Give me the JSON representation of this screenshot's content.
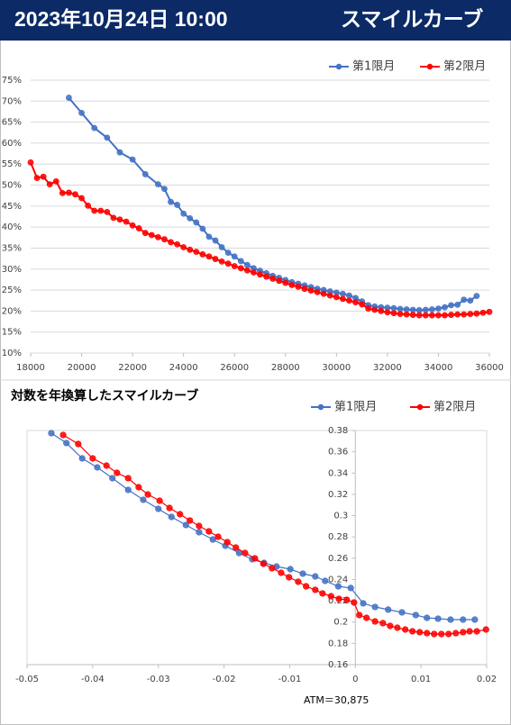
{
  "header": {
    "date": "2023年10月24日 10:00",
    "title": "スマイルカーブ"
  },
  "chart_data": [
    {
      "type": "line",
      "legend": "top-right",
      "grid": true,
      "xlim": [
        18000,
        36000
      ],
      "xticks": [
        18000,
        20000,
        22000,
        24000,
        26000,
        28000,
        30000,
        32000,
        34000,
        36000
      ],
      "ylim": [
        10,
        75
      ],
      "yticks": [
        {
          "value": 10,
          "label": "10%"
        },
        {
          "value": 15,
          "label": "15%"
        },
        {
          "value": 20,
          "label": "20%"
        },
        {
          "value": 25,
          "label": "25%"
        },
        {
          "value": 30,
          "label": "30%"
        },
        {
          "value": 35,
          "label": "35%"
        },
        {
          "value": 40,
          "label": "40%"
        },
        {
          "value": 45,
          "label": "45%"
        },
        {
          "value": 50,
          "label": "50%"
        },
        {
          "value": 55,
          "label": "55%"
        },
        {
          "value": 60,
          "label": "60%"
        },
        {
          "value": 65,
          "label": "65%"
        },
        {
          "value": 70,
          "label": "70%"
        },
        {
          "value": 75,
          "label": "75%"
        }
      ],
      "series": [
        {
          "name": "第1限月",
          "color": "#4472c4",
          "x": [
            19500,
            20000,
            20500,
            21000,
            21500,
            22000,
            22500,
            23000,
            23250,
            23500,
            23750,
            24000,
            24250,
            24500,
            24750,
            25000,
            25250,
            25500,
            25750,
            26000,
            26250,
            26500,
            26750,
            27000,
            27250,
            27500,
            27750,
            28000,
            28250,
            28500,
            28750,
            29000,
            29250,
            29500,
            29750,
            30000,
            30250,
            30500,
            30750,
            31000,
            31250,
            31500,
            31750,
            32000,
            32250,
            32500,
            32750,
            33000,
            33250,
            33500,
            33750,
            34000,
            34250,
            34500,
            34750,
            35000,
            35250,
            35500
          ],
          "values": [
            70.8,
            67.2,
            63.6,
            61.3,
            57.8,
            56.1,
            52.6,
            50.2,
            49.1,
            46.0,
            45.3,
            43.2,
            42.1,
            41.1,
            39.6,
            37.7,
            36.8,
            35.2,
            33.9,
            33.0,
            31.9,
            31.0,
            30.2,
            29.6,
            29.0,
            28.4,
            27.9,
            27.4,
            26.9,
            26.5,
            26.1,
            25.7,
            25.3,
            25.0,
            24.7,
            24.4,
            24.1,
            23.7,
            23.1,
            22.3,
            21.4,
            21.1,
            20.9,
            20.8,
            20.7,
            20.5,
            20.4,
            20.3,
            20.2,
            20.3,
            20.4,
            20.6,
            20.9,
            21.4,
            21.5,
            22.7,
            22.5,
            23.6
          ]
        },
        {
          "name": "第2限月",
          "color": "#ff0000",
          "x": [
            18000,
            18250,
            18500,
            18750,
            19000,
            19250,
            19500,
            19750,
            20000,
            20250,
            20500,
            20750,
            21000,
            21250,
            21500,
            21750,
            22000,
            22250,
            22500,
            22750,
            23000,
            23250,
            23500,
            23750,
            24000,
            24250,
            24500,
            24750,
            25000,
            25250,
            25500,
            25750,
            26000,
            26250,
            26500,
            26750,
            27000,
            27250,
            27500,
            27750,
            28000,
            28250,
            28500,
            28750,
            29000,
            29250,
            29500,
            29750,
            30000,
            30250,
            30500,
            30750,
            31000,
            31250,
            31500,
            31750,
            32000,
            32250,
            32500,
            32750,
            33000,
            33250,
            33500,
            33750,
            34000,
            34250,
            34500,
            34750,
            35000,
            35250,
            35500,
            35750,
            36000
          ],
          "values": [
            55.4,
            51.7,
            52.0,
            50.2,
            50.9,
            48.1,
            48.2,
            47.8,
            46.9,
            45.1,
            43.9,
            43.9,
            43.6,
            42.2,
            41.8,
            41.3,
            40.4,
            39.7,
            38.6,
            38.1,
            37.6,
            37.1,
            36.4,
            35.9,
            35.2,
            34.6,
            34.1,
            33.5,
            33.0,
            32.4,
            31.8,
            31.3,
            30.7,
            30.2,
            29.7,
            29.2,
            28.7,
            28.2,
            27.7,
            27.2,
            26.7,
            26.2,
            25.8,
            25.3,
            24.9,
            24.5,
            24.1,
            23.7,
            23.3,
            22.9,
            22.5,
            22.1,
            21.6,
            20.6,
            20.3,
            20.0,
            19.7,
            19.5,
            19.3,
            19.2,
            19.1,
            19.0,
            19.0,
            19.0,
            19.0,
            19.0,
            19.1,
            19.2,
            19.2,
            19.3,
            19.4,
            19.6,
            19.8
          ]
        }
      ]
    },
    {
      "type": "line",
      "title": "対数を年換算したスマイルカーブ",
      "legend": "top-right",
      "grid": false,
      "yaxis_cross_x": 0,
      "annotation": "ATM＝30,875",
      "xlim": [
        -0.05,
        0.02
      ],
      "xticks": [
        -0.05,
        -0.04,
        -0.03,
        -0.02,
        -0.01,
        0,
        0.01,
        0.02
      ],
      "ylim": [
        0.16,
        0.38
      ],
      "yticks": [
        0.16,
        0.18,
        0.2,
        0.22,
        0.24,
        0.26,
        0.28,
        0.3,
        0.32,
        0.34,
        0.36,
        0.38
      ],
      "series": [
        {
          "name": "第1限月",
          "color": "#4472c4",
          "x": [
            -0.0463,
            -0.044,
            -0.0416,
            -0.0393,
            -0.037,
            -0.0346,
            -0.0323,
            -0.03,
            -0.028,
            -0.0258,
            -0.0238,
            -0.0217,
            -0.0198,
            -0.0177,
            -0.0157,
            -0.0139,
            -0.012,
            -0.0099,
            -0.008,
            -0.0061,
            -0.0046,
            -0.0026,
            -0.0007,
            0.0012,
            0.003,
            0.005,
            0.0071,
            0.0092,
            0.0109,
            0.0126,
            0.0145,
            0.0164,
            0.0182
          ],
          "values": [
            0.3775,
            0.3682,
            0.3538,
            0.3453,
            0.3352,
            0.3242,
            0.3149,
            0.3064,
            0.2988,
            0.2912,
            0.2844,
            0.2776,
            0.2717,
            0.2649,
            0.259,
            0.2556,
            0.2522,
            0.2497,
            0.2455,
            0.2429,
            0.2387,
            0.2336,
            0.232,
            0.2176,
            0.2142,
            0.2117,
            0.2091,
            0.2066,
            0.204,
            0.2032,
            0.2023,
            0.2023,
            0.2023
          ]
        },
        {
          "name": "第2限月",
          "color": "#ff0000",
          "x": [
            -0.0445,
            -0.0422,
            -0.04,
            -0.0379,
            -0.0363,
            -0.0346,
            -0.033,
            -0.0316,
            -0.0298,
            -0.0283,
            -0.0267,
            -0.0252,
            -0.0238,
            -0.0223,
            -0.0209,
            -0.0195,
            -0.0182,
            -0.0168,
            -0.0153,
            -0.014,
            -0.0127,
            -0.0113,
            -0.0101,
            -0.0087,
            -0.0075,
            -0.0061,
            -0.005,
            -0.0037,
            -0.0025,
            -0.0013,
            -0.0002,
            0.0006,
            0.0017,
            0.003,
            0.0042,
            0.0053,
            0.0064,
            0.0076,
            0.0087,
            0.0098,
            0.0109,
            0.012,
            0.0131,
            0.0142,
            0.0153,
            0.0164,
            0.0174,
            0.0185,
            0.0199
          ],
          "values": [
            0.3758,
            0.3673,
            0.3538,
            0.347,
            0.3402,
            0.3352,
            0.3267,
            0.3199,
            0.314,
            0.3072,
            0.3013,
            0.2954,
            0.2903,
            0.2852,
            0.2802,
            0.2751,
            0.27,
            0.2649,
            0.2599,
            0.2548,
            0.2506,
            0.2463,
            0.2421,
            0.2379,
            0.2336,
            0.2303,
            0.2269,
            0.2243,
            0.2218,
            0.2209,
            0.2184,
            0.2066,
            0.204,
            0.2006,
            0.199,
            0.1964,
            0.1947,
            0.193,
            0.1913,
            0.1905,
            0.1896,
            0.1888,
            0.1888,
            0.1888,
            0.1896,
            0.1905,
            0.1913,
            0.1913,
            0.193
          ]
        }
      ]
    }
  ]
}
